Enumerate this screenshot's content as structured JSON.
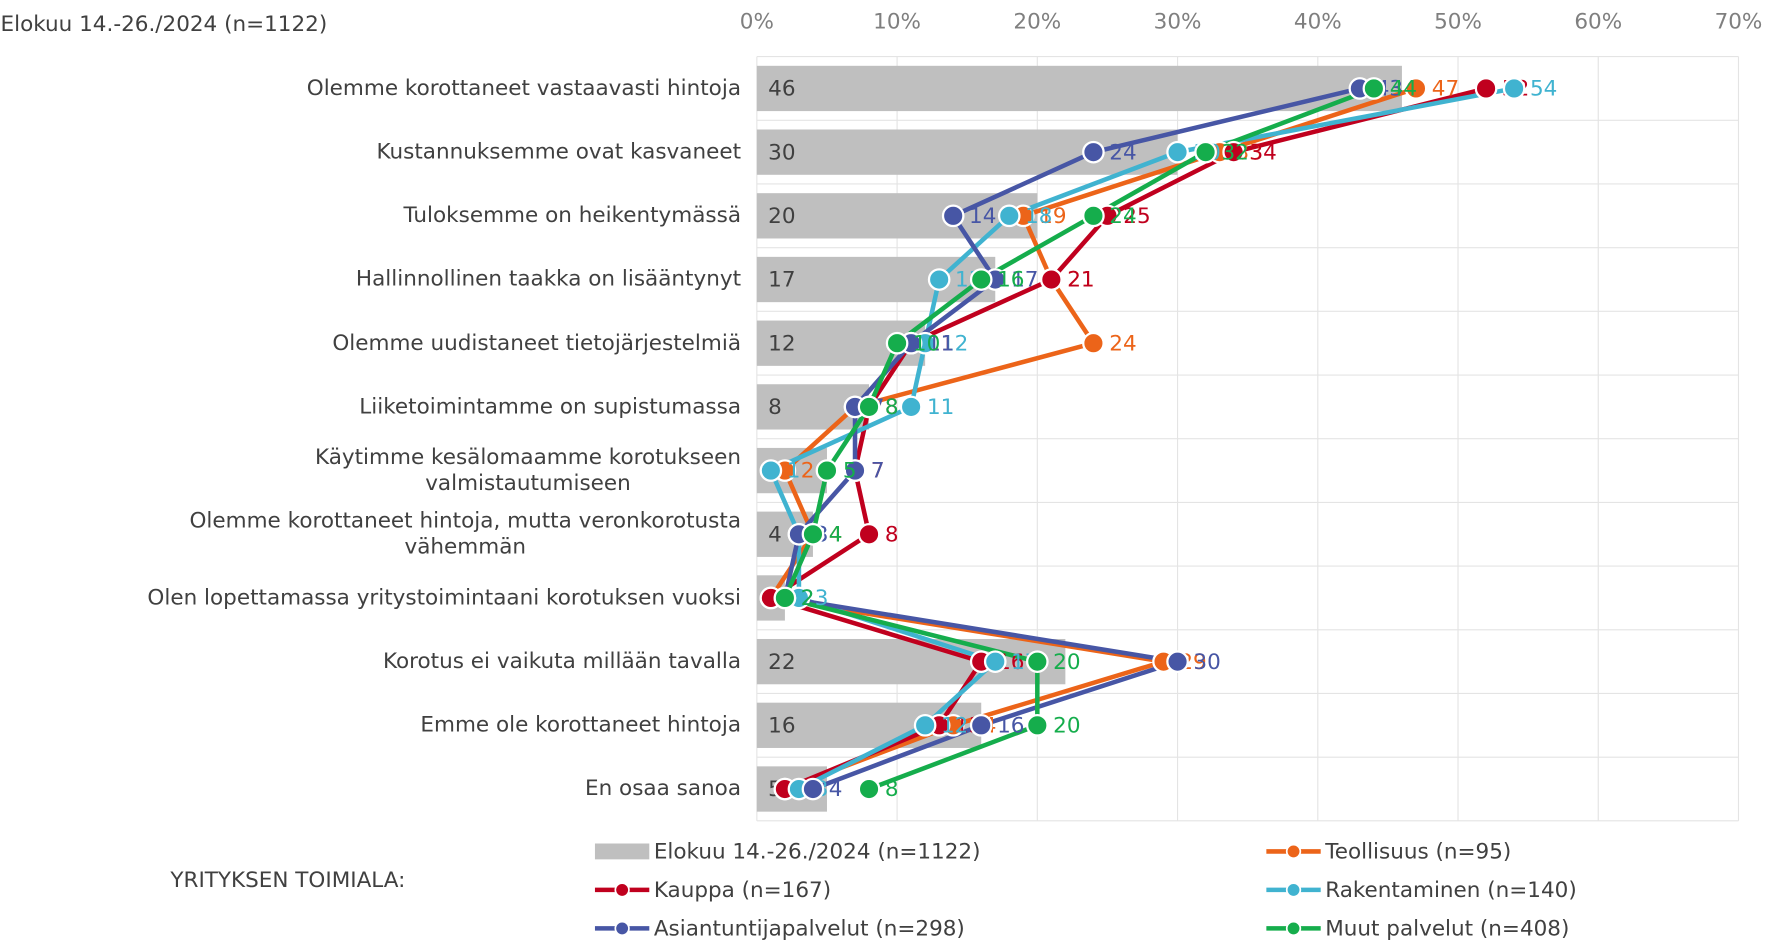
{
  "chart_data": {
    "type": "bar_line",
    "title": "Elokuu 14.-26./2024 (n=1122)",
    "legend_title": "YRITYKSEN TOIMIALA:",
    "categories": [
      "Olemme korottaneet vastaavasti hintoja",
      "Kustannuksemme ovat kasvaneet",
      "Tuloksemme on heikentymässä",
      "Hallinnollinen taakka on lisääntynyt",
      "Olemme uudistaneet tietojärjestelmiä",
      "Liiketoimintamme on supistumassa",
      "Käytimme kesälomaamme korotukseen\nvalmistautumiseen",
      "Olemme korottaneet hintoja, mutta veronkorotusta\nvähemmän",
      "Olen lopettamassa yritystoimintaani korotuksen vuoksi",
      "Korotus ei vaikuta millään tavalla",
      "Emme ole korottaneet hintoja",
      "En osaa sanoa"
    ],
    "bar_series": {
      "name": "Elokuu 14.-26./2024 (n=1122)",
      "color": "#bfbfbf",
      "values": [
        46,
        30,
        20,
        17,
        12,
        8,
        5,
        4,
        2,
        22,
        16,
        5
      ]
    },
    "series": [
      {
        "name": "Teollisuus (n=95)",
        "color": "#ec6419",
        "values": [
          47,
          33,
          19,
          21,
          24,
          7,
          2,
          4,
          1,
          29,
          14,
          2
        ]
      },
      {
        "name": "Kauppa (n=167)",
        "color": "#c0001e",
        "values": [
          52,
          34,
          25,
          21,
          11,
          8,
          7,
          8,
          1,
          16,
          13,
          2
        ]
      },
      {
        "name": "Rakentaminen (n=140)",
        "color": "#40b3d0",
        "values": [
          54,
          30,
          18,
          13,
          12,
          11,
          1,
          3,
          3,
          17,
          12,
          3
        ]
      },
      {
        "name": "Asiantuntijapalvelut (n=298)",
        "color": "#4756a5",
        "values": [
          43,
          24,
          14,
          17,
          11,
          7,
          7,
          3,
          2,
          30,
          16,
          4
        ]
      },
      {
        "name": "Muut palvelut (n=408)",
        "color": "#15ad4c",
        "values": [
          44,
          32,
          24,
          16,
          10,
          8,
          5,
          4,
          2,
          20,
          20,
          8
        ]
      }
    ],
    "xlim": [
      0,
      70
    ],
    "xticks": [
      {
        "value": 0,
        "label": "0%"
      },
      {
        "value": 10,
        "label": "10%"
      },
      {
        "value": 20,
        "label": "20%"
      },
      {
        "value": 30,
        "label": "30%"
      },
      {
        "value": 40,
        "label": "40%"
      },
      {
        "value": 50,
        "label": "50%"
      },
      {
        "value": 60,
        "label": "60%"
      },
      {
        "value": 70,
        "label": "70%"
      }
    ],
    "grid": true
  }
}
